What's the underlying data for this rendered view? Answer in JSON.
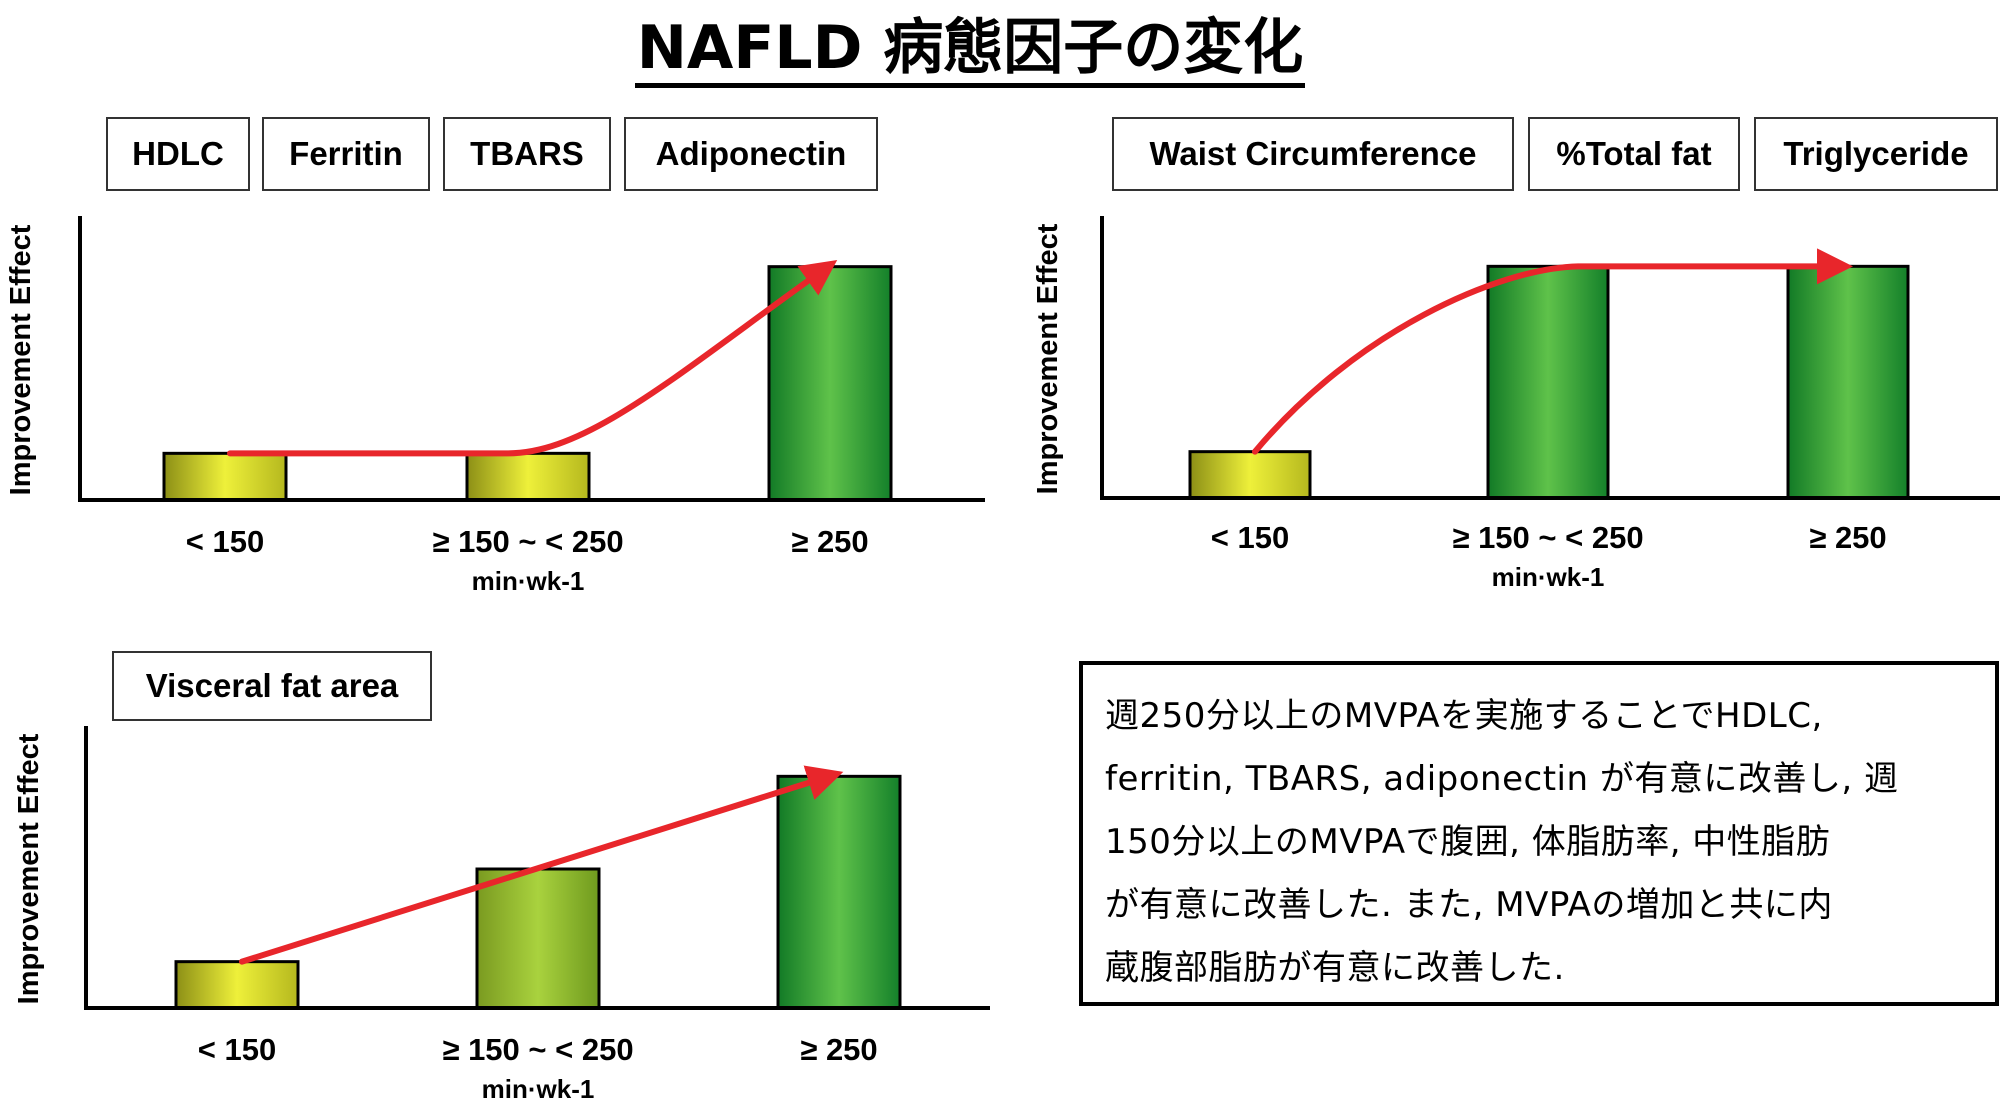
{
  "title": "NAFLD 病態因子の変化",
  "colors": {
    "arrow": "#e8262b",
    "bar_low_top": "#e6ea2e",
    "bar_high": "#22a13a",
    "axis": "#000000"
  },
  "panels": [
    {
      "tags": [
        "HDLC",
        "Ferritin",
        "TBARS",
        "Adiponectin"
      ]
    },
    {
      "tags": [
        "Waist Circumference",
        "%Total fat",
        "Triglyceride"
      ]
    },
    {
      "tags": [
        "Visceral fat area"
      ]
    }
  ],
  "chart_data": [
    {
      "type": "bar",
      "title": "HDLC / Ferritin / TBARS / Adiponectin",
      "categories": [
        "< 150",
        "≥ 150 ~ < 250",
        "≥ 250"
      ],
      "values": [
        0.2,
        0.2,
        1.0
      ],
      "ylim": [
        0,
        1.2
      ],
      "xlabel": "min·wk-1",
      "ylabel": "Improvement Effect",
      "fills": [
        "low",
        "low",
        "high"
      ],
      "trend": [
        [
          0,
          0.2
        ],
        [
          1,
          0.2
        ],
        [
          2,
          1.0
        ]
      ]
    },
    {
      "type": "bar",
      "title": "Waist Circumference / %Total fat / Triglyceride",
      "categories": [
        "< 150",
        "≥ 150 ~ < 250",
        "≥ 250"
      ],
      "values": [
        0.2,
        1.0,
        1.0
      ],
      "ylim": [
        0,
        1.2
      ],
      "xlabel": "min·wk-1",
      "ylabel": "Improvement Effect",
      "fills": [
        "low",
        "high",
        "high"
      ],
      "trend": [
        [
          0,
          0.2
        ],
        [
          1,
          1.0
        ],
        [
          2,
          1.0
        ]
      ]
    },
    {
      "type": "bar",
      "title": "Visceral fat area",
      "categories": [
        "< 150",
        "≥ 150 ~ < 250",
        "≥ 250"
      ],
      "values": [
        0.2,
        0.6,
        1.0
      ],
      "ylim": [
        0,
        1.2
      ],
      "xlabel": "min·wk-1",
      "ylabel": "Improvement Effect",
      "fills": [
        "low",
        "mid",
        "high"
      ],
      "trend": [
        [
          0,
          0.2
        ],
        [
          2,
          1.0
        ]
      ]
    }
  ],
  "note": {
    "lines": [
      "週250分以上のMVPAを実施することでHDLC,",
      "ferritin, TBARS, adiponectin が有意に改善し, 週",
      "150分以上のMVPAで腹囲, 体脂肪率, 中性脂肪",
      "が有意に改善した. また, MVPAの増加と共に内",
      "蔵腹部脂肪が有意に改善した."
    ]
  }
}
